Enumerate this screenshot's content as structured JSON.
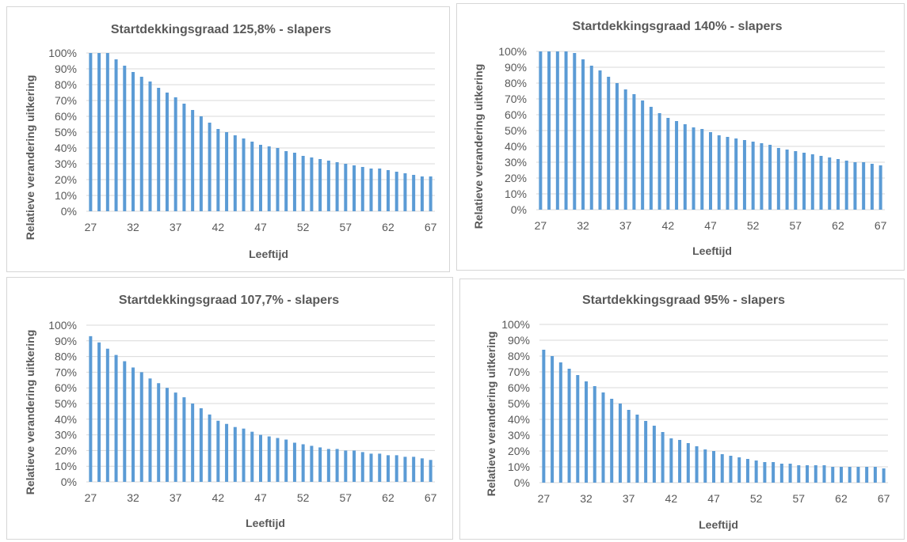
{
  "chart_data": [
    {
      "type": "bar",
      "title": "Startdekkingsgraad 125,8%  - slapers",
      "xlabel": "Leeftijd",
      "ylabel": "Relatieve verandering uitkering",
      "ylim": [
        0,
        100
      ],
      "grid": true,
      "color": "#5b9bd5",
      "x_tick_labels": [
        "27",
        "32",
        "37",
        "42",
        "47",
        "52",
        "57",
        "62",
        "67"
      ],
      "y_tick_labels": [
        "0%",
        "10%",
        "20%",
        "30%",
        "40%",
        "50%",
        "60%",
        "70%",
        "80%",
        "90%",
        "100%"
      ],
      "categories": [
        27,
        28,
        29,
        30,
        31,
        32,
        33,
        34,
        35,
        36,
        37,
        38,
        39,
        40,
        41,
        42,
        43,
        44,
        45,
        46,
        47,
        48,
        49,
        50,
        51,
        52,
        53,
        54,
        55,
        56,
        57,
        58,
        59,
        60,
        61,
        62,
        63,
        64,
        65,
        66,
        67
      ],
      "values": [
        100,
        100,
        100,
        96,
        92,
        88,
        85,
        82,
        78,
        75,
        72,
        68,
        64,
        60,
        56,
        52,
        50,
        48,
        46,
        44,
        42,
        41,
        40,
        38,
        37,
        35,
        34,
        33,
        32,
        31,
        30,
        29,
        28,
        27,
        27,
        26,
        25,
        24,
        23,
        22,
        22
      ]
    },
    {
      "type": "bar",
      "title": "Startdekkingsgraad 140%  - slapers",
      "xlabel": "Leeftijd",
      "ylabel": "Relatieve verandering uitkering",
      "ylim": [
        0,
        100
      ],
      "grid": true,
      "color": "#5b9bd5",
      "x_tick_labels": [
        "27",
        "32",
        "37",
        "42",
        "47",
        "52",
        "57",
        "62",
        "67"
      ],
      "y_tick_labels": [
        "0%",
        "10%",
        "20%",
        "30%",
        "40%",
        "50%",
        "60%",
        "70%",
        "80%",
        "90%",
        "100%"
      ],
      "categories": [
        27,
        28,
        29,
        30,
        31,
        32,
        33,
        34,
        35,
        36,
        37,
        38,
        39,
        40,
        41,
        42,
        43,
        44,
        45,
        46,
        47,
        48,
        49,
        50,
        51,
        52,
        53,
        54,
        55,
        56,
        57,
        58,
        59,
        60,
        61,
        62,
        63,
        64,
        65,
        66,
        67
      ],
      "values": [
        100,
        100,
        100,
        100,
        99,
        95,
        91,
        88,
        84,
        80,
        76,
        73,
        69,
        65,
        61,
        58,
        56,
        54,
        52,
        51,
        49,
        47,
        46,
        45,
        44,
        43,
        42,
        41,
        39,
        38,
        37,
        36,
        35,
        34,
        33,
        32,
        31,
        30,
        30,
        29,
        28
      ]
    },
    {
      "type": "bar",
      "title": "Startdekkingsgraad 107,7%  - slapers",
      "xlabel": "Leeftijd",
      "ylabel": "Relatieve verandering uitkering",
      "ylim": [
        0,
        100
      ],
      "grid": true,
      "color": "#5b9bd5",
      "x_tick_labels": [
        "27",
        "32",
        "37",
        "42",
        "47",
        "52",
        "57",
        "62",
        "67"
      ],
      "y_tick_labels": [
        "0%",
        "10%",
        "20%",
        "30%",
        "40%",
        "50%",
        "60%",
        "70%",
        "80%",
        "90%",
        "100%"
      ],
      "categories": [
        27,
        28,
        29,
        30,
        31,
        32,
        33,
        34,
        35,
        36,
        37,
        38,
        39,
        40,
        41,
        42,
        43,
        44,
        45,
        46,
        47,
        48,
        49,
        50,
        51,
        52,
        53,
        54,
        55,
        56,
        57,
        58,
        59,
        60,
        61,
        62,
        63,
        64,
        65,
        66,
        67
      ],
      "values": [
        93,
        89,
        85,
        81,
        77,
        73,
        70,
        66,
        63,
        60,
        57,
        54,
        50,
        47,
        43,
        39,
        37,
        35,
        34,
        32,
        30,
        29,
        28,
        27,
        25,
        24,
        23,
        22,
        21,
        21,
        20,
        20,
        19,
        18,
        18,
        17,
        17,
        16,
        16,
        15,
        14
      ]
    },
    {
      "type": "bar",
      "title": "Startdekkingsgraad 95%  - slapers",
      "xlabel": "Leeftijd",
      "ylabel": "Relatieve verandering uitkering",
      "ylim": [
        0,
        100
      ],
      "grid": true,
      "color": "#5b9bd5",
      "x_tick_labels": [
        "27",
        "32",
        "37",
        "42",
        "47",
        "52",
        "57",
        "62",
        "67"
      ],
      "y_tick_labels": [
        "0%",
        "10%",
        "20%",
        "30%",
        "40%",
        "50%",
        "60%",
        "70%",
        "80%",
        "90%",
        "100%"
      ],
      "categories": [
        27,
        28,
        29,
        30,
        31,
        32,
        33,
        34,
        35,
        36,
        37,
        38,
        39,
        40,
        41,
        42,
        43,
        44,
        45,
        46,
        47,
        48,
        49,
        50,
        51,
        52,
        53,
        54,
        55,
        56,
        57,
        58,
        59,
        60,
        61,
        62,
        63,
        64,
        65,
        66,
        67
      ],
      "values": [
        84,
        80,
        76,
        72,
        68,
        64,
        61,
        57,
        53,
        50,
        46,
        43,
        39,
        36,
        32,
        28,
        27,
        25,
        23,
        21,
        20,
        18,
        17,
        16,
        15,
        14,
        13,
        13,
        12,
        12,
        11,
        11,
        11,
        11,
        10,
        10,
        10,
        10,
        10,
        10,
        9
      ]
    }
  ]
}
